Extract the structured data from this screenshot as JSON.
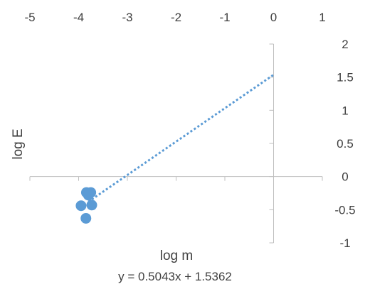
{
  "chart_data": {
    "type": "scatter",
    "title": "",
    "xlabel": "log m",
    "ylabel": "log E",
    "xlim": [
      -5,
      1
    ],
    "ylim": [
      -1,
      2
    ],
    "x_ticks": [
      -5,
      -4,
      -3,
      -2,
      -1,
      0,
      1
    ],
    "y_ticks": [
      -1,
      -0.5,
      0,
      0.5,
      1,
      1.5,
      2
    ],
    "x_tick_labels": [
      "-5",
      "-4",
      "-3",
      "-2",
      "-1",
      "0",
      "1"
    ],
    "y_tick_labels": [
      "-1",
      "-0.5",
      "0",
      "0.5",
      "1",
      "1.5",
      "2"
    ],
    "x_axis_label_position": "top",
    "y_axis_label_position": "right",
    "grid": false,
    "legend": "none",
    "series": [
      {
        "points": [
          {
            "x": -3.84,
            "y": -0.24
          },
          {
            "x": -3.75,
            "y": -0.24
          },
          {
            "x": -3.8,
            "y": -0.28
          },
          {
            "x": -3.95,
            "y": -0.44
          },
          {
            "x": -3.73,
            "y": -0.43
          },
          {
            "x": -3.85,
            "y": -0.63
          }
        ],
        "color": "#5b9bd5"
      }
    ],
    "trendline": {
      "equation": "y = 0.5043x + 1.5362",
      "slope": 0.5043,
      "intercept": 1.5362,
      "x_from": -3.8,
      "x_to": 0,
      "style": "dotted",
      "color": "#5b9bd5"
    },
    "axis_color": "#bfbfbf"
  }
}
